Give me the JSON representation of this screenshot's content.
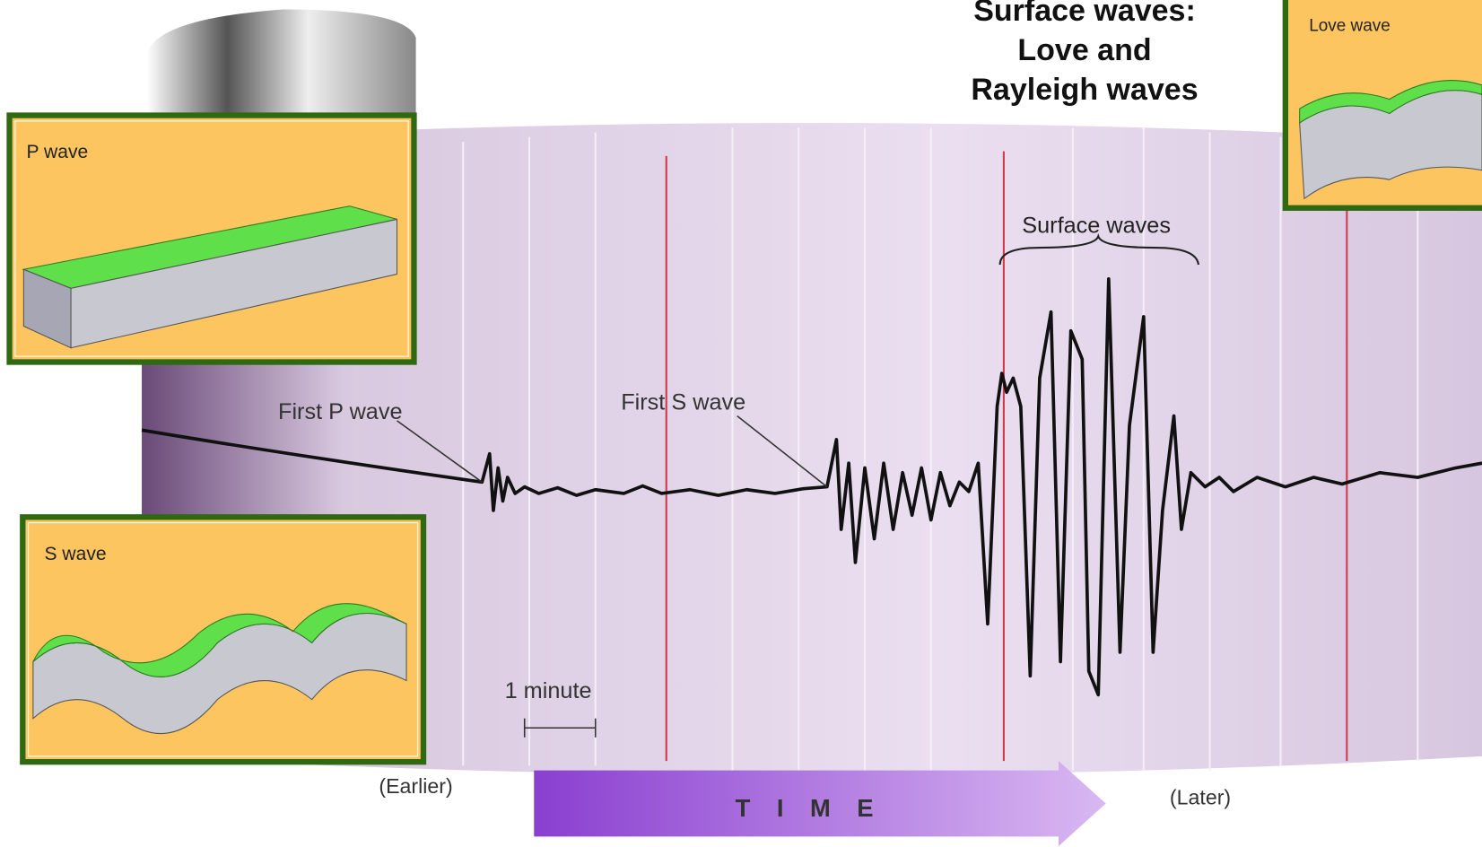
{
  "title": "Surface waves: Love and Rayleigh waves",
  "insets": [
    {
      "label": "P wave"
    },
    {
      "label": "S wave"
    },
    {
      "label": "Love wave"
    }
  ],
  "seismogram": {
    "surface_label": "Surface waves",
    "first_p": "First P wave",
    "first_s": "First S wave",
    "scale": "1 minute"
  },
  "time_axis": {
    "earlier": "(Earlier)",
    "label": "TIME",
    "later": "(Later)"
  }
}
